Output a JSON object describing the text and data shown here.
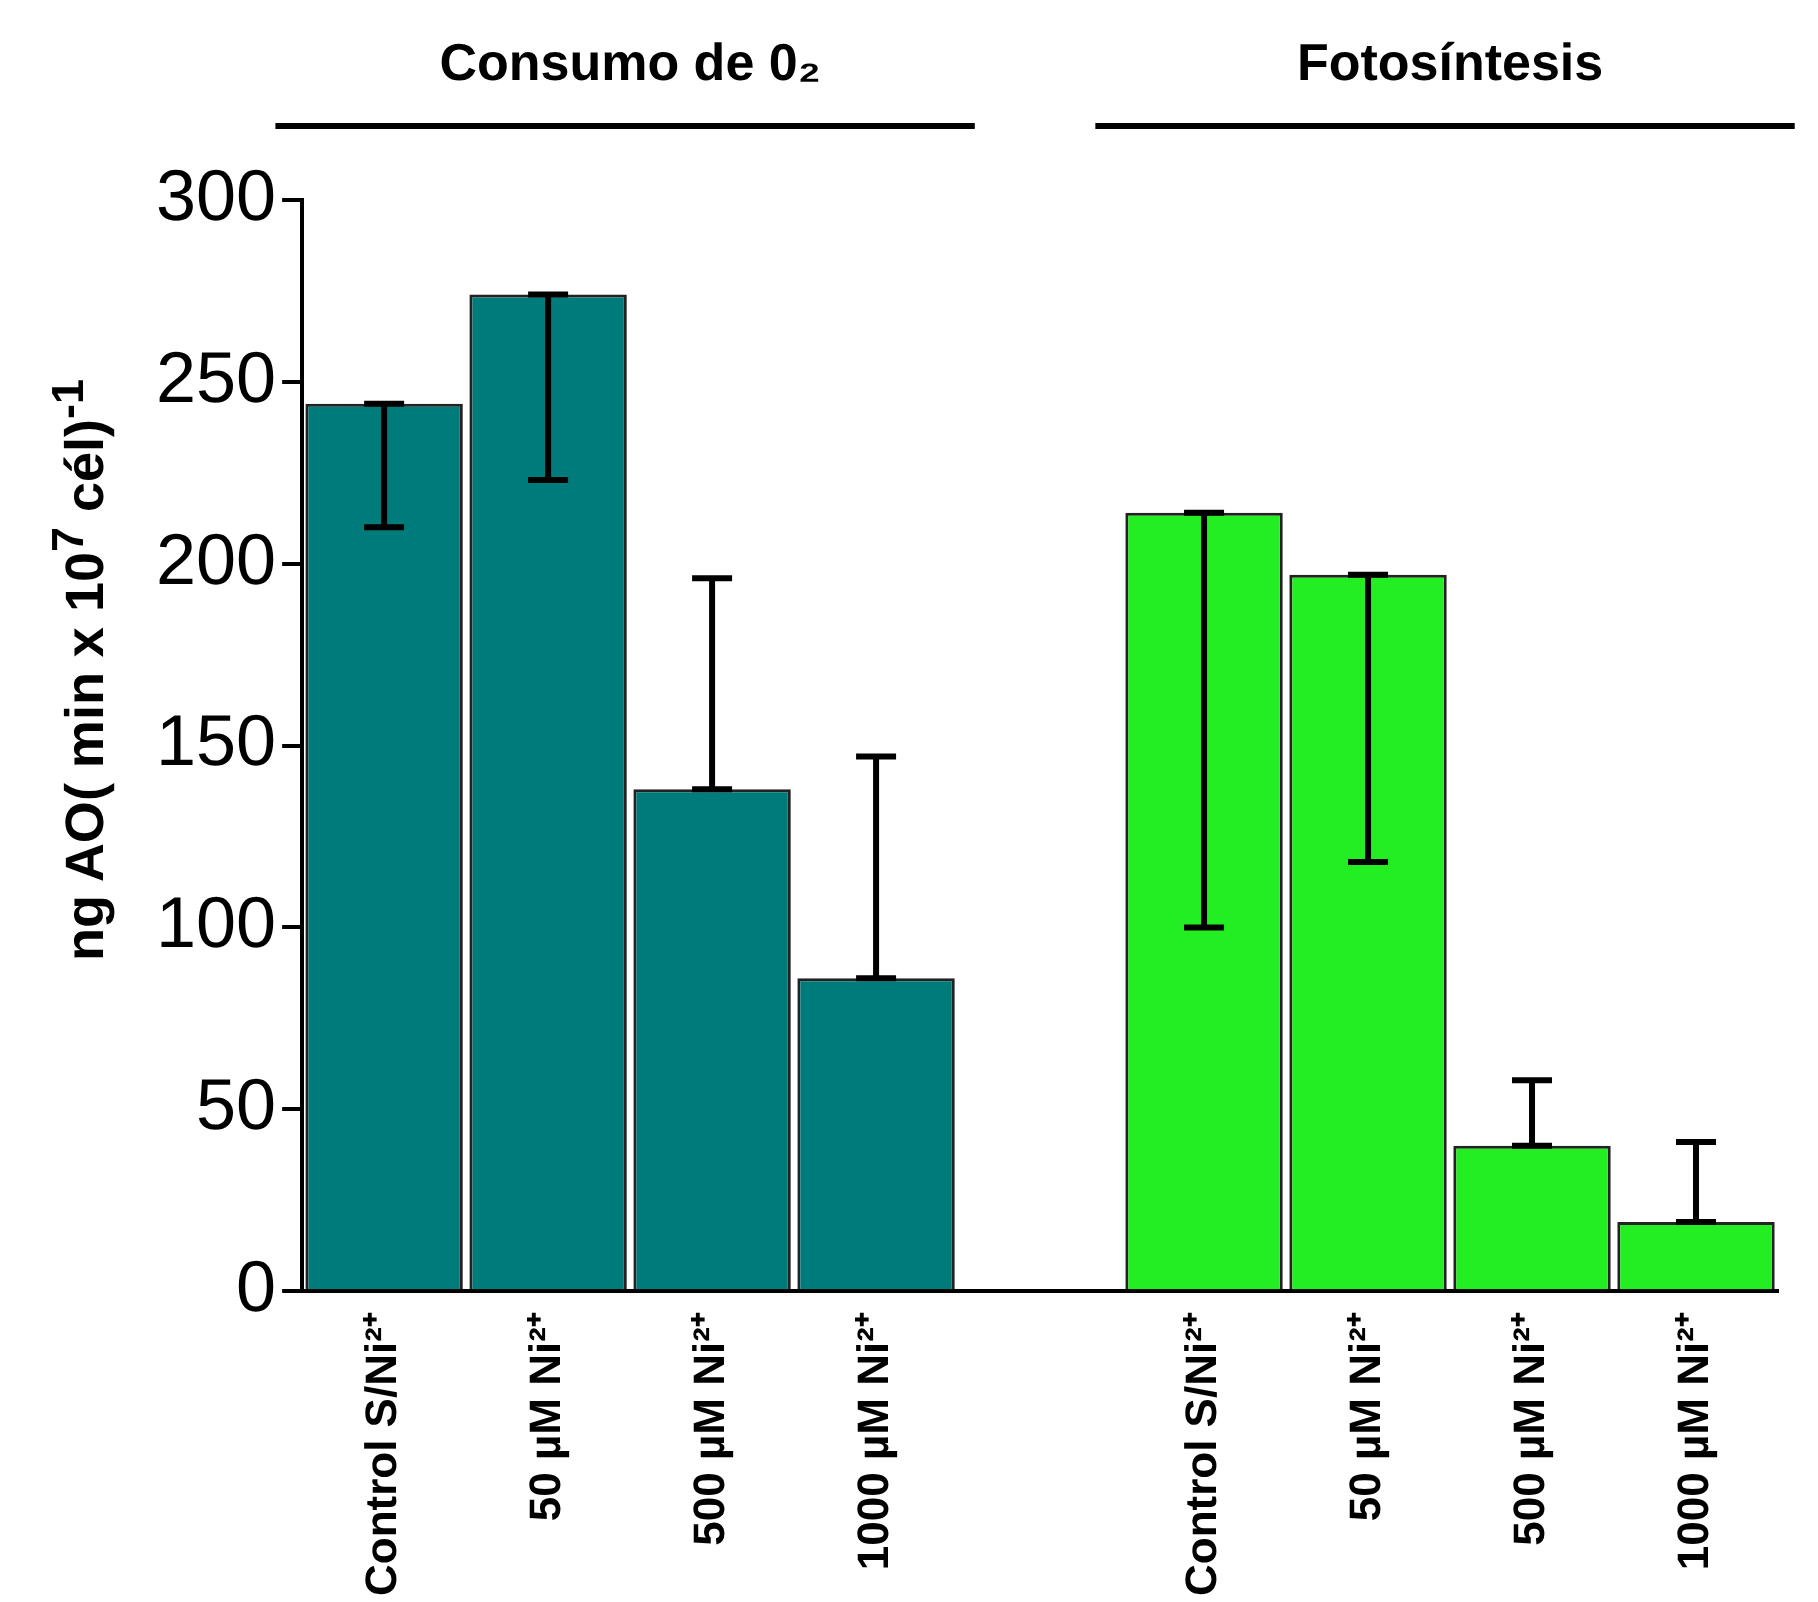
{
  "chart_data": {
    "type": "bar",
    "ylabel": "ng AO( min x 10$^{7}$ cél)$^{-1}$",
    "annotations": [
      "Consumo de 0₂",
      "Fotosíntesis"
    ],
    "categories": [
      "Control S/Ni²⁺",
      "50 µM Ni²⁺",
      "500 µM Ni²⁺",
      "1000 µM Ni²⁺",
      null,
      "Control S/Ni²⁺",
      "50 µM Ni²⁺",
      "500 µM Ni²⁺",
      "1000 µM Ni²⁺"
    ],
    "values": [
      244,
      274,
      138,
      86,
      null,
      214,
      197,
      40,
      19
    ],
    "colors": [
      "#007b7b",
      "#007b7b",
      "#007b7b",
      "#007b7b",
      "#007b7b",
      "#22ee22",
      "#22ee22",
      "#22ee22",
      "#22ee22"
    ],
    "errors": [
      [
        210,
        244
      ],
      [
        223,
        274
      ],
      [
        138,
        196
      ],
      [
        86,
        147
      ],
      null,
      [
        100,
        214
      ],
      [
        118,
        197
      ],
      [
        40,
        58
      ],
      [
        19,
        41
      ]
    ],
    "ylim": [
      0,
      300
    ],
    "yticks": [
      0,
      50,
      100,
      150,
      200,
      250,
      300
    ],
    "grid": false,
    "legend": false
  }
}
